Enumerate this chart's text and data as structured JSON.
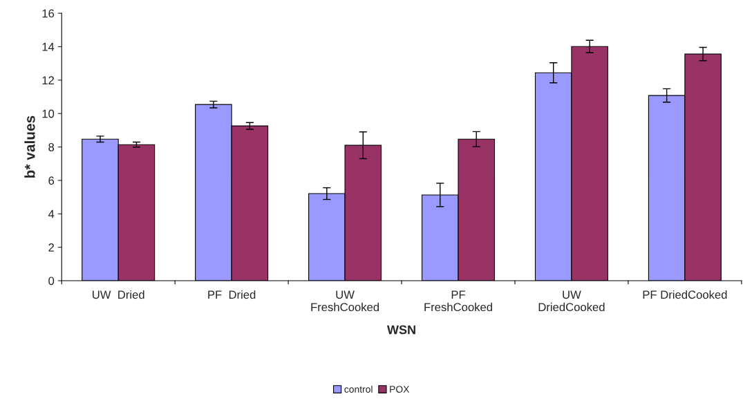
{
  "chart_data": {
    "type": "bar",
    "xlabel": "WSN",
    "ylabel": "b* values",
    "categories": [
      "UW  Dried",
      "PF  Dried",
      "UW\nFreshCooked",
      "PF\nFreshCooked",
      "UW\nDriedCooked",
      "PF DriedCooked"
    ],
    "series": [
      {
        "name": "control",
        "color": "#9999ff",
        "values": [
          8.47,
          10.54,
          5.21,
          5.13,
          12.44,
          11.08
        ],
        "errors": [
          0.18,
          0.2,
          0.35,
          0.7,
          0.6,
          0.4
        ]
      },
      {
        "name": "POX",
        "color": "#993366",
        "values": [
          8.14,
          9.26,
          8.1,
          8.47,
          14.01,
          13.56
        ],
        "errors": [
          0.15,
          0.2,
          0.8,
          0.45,
          0.37,
          0.4
        ]
      }
    ],
    "ylim": [
      0,
      16
    ],
    "yticks": [
      0,
      2,
      4,
      6,
      8,
      10,
      12,
      14,
      16
    ],
    "grid": false,
    "legend": "bottom"
  }
}
